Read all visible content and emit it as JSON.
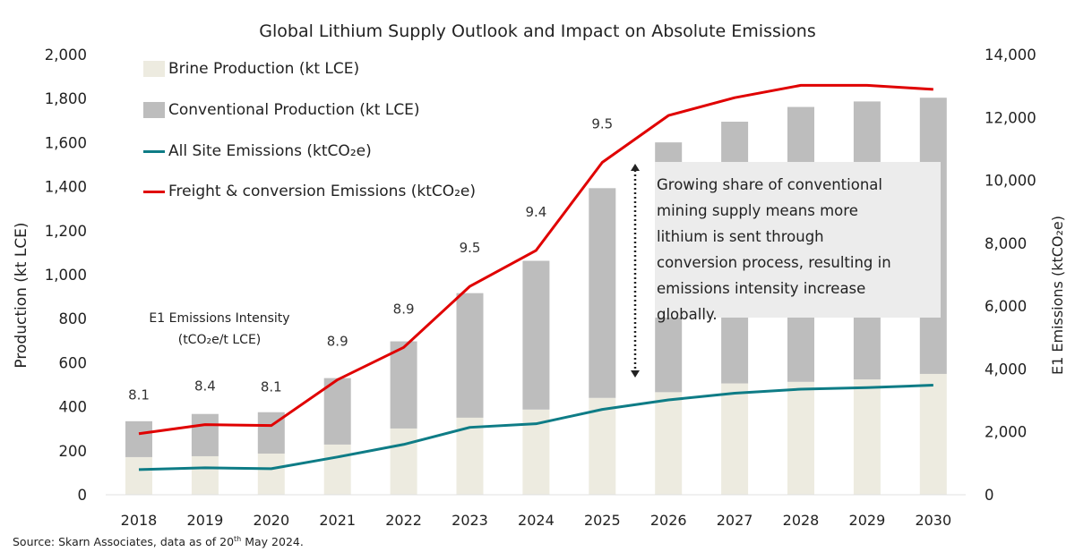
{
  "chart_data": {
    "type": "bar",
    "title": "Global Lithium Supply Outlook and Impact on Absolute Emissions",
    "ylabel": "Production (kt LCE)",
    "y2label": "E1 Emissions (ktCO₂e)",
    "ylim": [
      0,
      2000
    ],
    "y2lim": [
      0,
      14000
    ],
    "yticks": [
      "0",
      "200",
      "400",
      "600",
      "800",
      "1,000",
      "1,200",
      "1,400",
      "1,600",
      "1,800",
      "2,000"
    ],
    "y2ticks": [
      "0",
      "2,000",
      "4,000",
      "6,000",
      "8,000",
      "10,000",
      "12,000",
      "14,000"
    ],
    "categories": [
      "2018",
      "2019",
      "2020",
      "2021",
      "2022",
      "2023",
      "2024",
      "2025",
      "2026",
      "2027",
      "2028",
      "2029",
      "2030"
    ],
    "series": [
      {
        "name": "Brine Production (kt LCE)",
        "kind": "stacked-bar",
        "axis": "left",
        "color": "#edebe0",
        "values": [
          171,
          175,
          187,
          228,
          301,
          350,
          387,
          440,
          466,
          506,
          513,
          524,
          549
        ]
      },
      {
        "name": "Conventional Production (kt LCE)",
        "kind": "stacked-bar",
        "axis": "left",
        "color": "#bdbdbd",
        "values": [
          163,
          192,
          188,
          302,
          396,
          566,
          676,
          953,
          1135,
          1189,
          1249,
          1263,
          1255
        ]
      },
      {
        "name": "All Site Emissions (ktCO₂e)",
        "kind": "line",
        "axis": "right",
        "color": "#0e7c86",
        "values": [
          800,
          857,
          829,
          1200,
          1600,
          2143,
          2257,
          2714,
          3015,
          3231,
          3358,
          3407,
          3485
        ]
      },
      {
        "name": "Freight & conversion Emissions (ktCO₂e)",
        "kind": "line",
        "axis": "right",
        "color": "#e00000",
        "values": [
          1943,
          2229,
          2200,
          3657,
          4686,
          6629,
          7771,
          10571,
          12062,
          12629,
          13021,
          13021,
          12894
        ]
      }
    ],
    "intensity_heading": [
      "E1 Emissions Intensity",
      "(tCO₂e/t LCE)"
    ],
    "intensity_labels": [
      "8.1",
      "8.4",
      "8.1",
      "8.9",
      "8.9",
      "9.5",
      "9.4",
      "9.5"
    ],
    "annotation": [
      "Growing share of conventional",
      "mining supply means more",
      "lithium is sent through",
      "conversion process, resulting in",
      "emissions intensity increase",
      "globally."
    ],
    "legend_position": "top-left",
    "grid": false
  },
  "source": {
    "text": "Source: Skarn Associates, data as of 20",
    "sup": "th",
    "tail": " May 2024."
  }
}
